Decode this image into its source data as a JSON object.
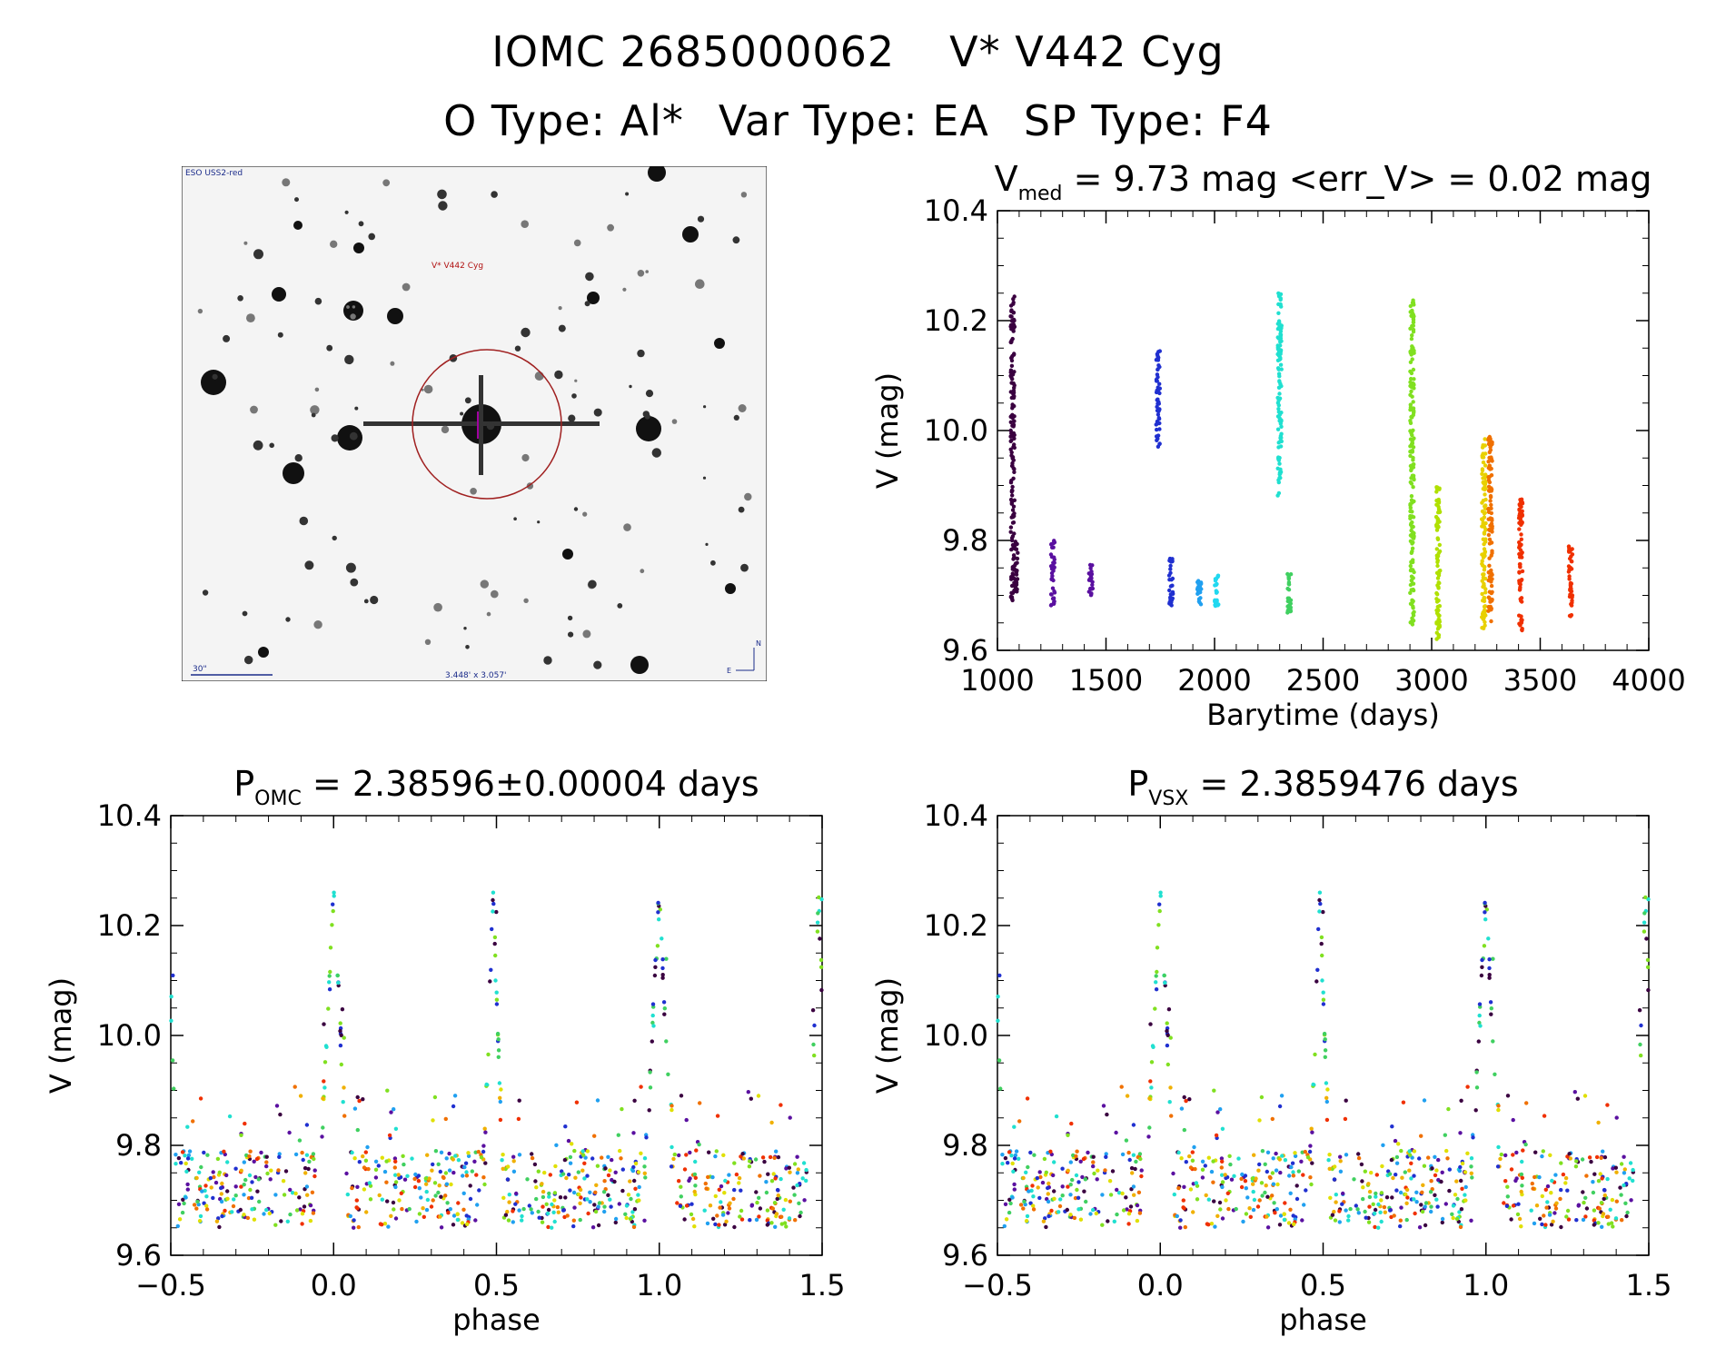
{
  "header": {
    "object_id": "IOMC 2685000062",
    "star_name": "V* V442 Cyg",
    "o_type": "O Type: Al*",
    "var_type": "Var Type: EA",
    "sp_type": "SP Type: F4"
  },
  "finder": {
    "survey_label": "ESO USS2-red",
    "target_label": "V* V442 Cyg",
    "scale_label": "30\"",
    "fov_label": "3.448' x 3.057'",
    "north_label": "N",
    "east_label": "E"
  },
  "colors": {
    "season_palette": [
      "#3a0040",
      "#5a10a0",
      "#2030d0",
      "#20a0f0",
      "#20e0d0",
      "#40d060",
      "#80e020",
      "#e0e000",
      "#f0b000",
      "#f07000",
      "#f03000"
    ]
  },
  "chart_data": [
    {
      "id": "lightcurve",
      "type": "scatter",
      "title_main": "V",
      "title_sub": "med",
      "title_rest": " = 9.73 mag <err_V> = 0.02 mag",
      "xlabel": "Barytime (days)",
      "ylabel": "V (mag)",
      "xlim": [
        1000,
        4000
      ],
      "ylim": [
        10.4,
        9.6
      ],
      "y_inverted": true,
      "xticks": [
        "1000",
        "1500",
        "2000",
        "2500",
        "3000",
        "3500",
        "4000"
      ],
      "yticks": [
        "9.6",
        "9.8",
        "10.0",
        "10.2",
        "10.4"
      ],
      "groups": [
        {
          "x": 1070,
          "ymin": 9.69,
          "ymax": 10.25,
          "color": "#3a0040"
        },
        {
          "x": 1085,
          "ymin": 9.7,
          "ymax": 9.8,
          "color": "#3a0040"
        },
        {
          "x": 1255,
          "ymin": 9.68,
          "ymax": 9.8,
          "color": "#5a10a0"
        },
        {
          "x": 1430,
          "ymin": 9.7,
          "ymax": 9.76,
          "color": "#5a10a0"
        },
        {
          "x": 1740,
          "ymin": 9.97,
          "ymax": 10.15,
          "color": "#2030d0"
        },
        {
          "x": 1800,
          "ymin": 9.68,
          "ymax": 9.77,
          "color": "#2030d0"
        },
        {
          "x": 1930,
          "ymin": 9.68,
          "ymax": 9.73,
          "color": "#20a0f0"
        },
        {
          "x": 2010,
          "ymin": 9.68,
          "ymax": 9.74,
          "color": "#20d8f0"
        },
        {
          "x": 2300,
          "ymin": 9.88,
          "ymax": 10.25,
          "color": "#20e0d0"
        },
        {
          "x": 2345,
          "ymin": 9.66,
          "ymax": 9.74,
          "color": "#40d060"
        },
        {
          "x": 2910,
          "ymin": 9.64,
          "ymax": 10.25,
          "color": "#80e020"
        },
        {
          "x": 3030,
          "ymin": 9.62,
          "ymax": 9.9,
          "color": "#b0e000"
        },
        {
          "x": 3240,
          "ymin": 9.64,
          "ymax": 9.99,
          "color": "#e8d000"
        },
        {
          "x": 3270,
          "ymin": 9.65,
          "ymax": 9.99,
          "color": "#f07000"
        },
        {
          "x": 3410,
          "ymin": 9.63,
          "ymax": 9.88,
          "color": "#f03000"
        },
        {
          "x": 3640,
          "ymin": 9.66,
          "ymax": 9.79,
          "color": "#f03000"
        }
      ]
    },
    {
      "id": "phase_omc",
      "type": "scatter",
      "title_main": "P",
      "title_sub": "OMC",
      "title_rest": " = 2.38596±0.00004 days",
      "xlabel": "phase",
      "ylabel": "V (mag)",
      "xlim": [
        -0.5,
        1.5
      ],
      "ylim": [
        10.4,
        9.6
      ],
      "y_inverted": true,
      "xticks": [
        "−0.5",
        "0.0",
        "0.5",
        "1.0",
        "1.5"
      ],
      "yticks": [
        "9.6",
        "9.8",
        "10.0",
        "10.2",
        "10.4"
      ],
      "model": {
        "max_mag": 9.72,
        "primary_depth": 10.25,
        "primary_phase": 0.0,
        "primary_width": 0.045,
        "secondary_depth": 10.25,
        "secondary_phase": 0.49,
        "secondary_width": 0.03
      }
    },
    {
      "id": "phase_vsx",
      "type": "scatter",
      "title_main": "P",
      "title_sub": "VSX",
      "title_rest": " = 2.3859476 days",
      "xlabel": "phase",
      "ylabel": "V (mag)",
      "xlim": [
        -0.5,
        1.5
      ],
      "ylim": [
        10.4,
        9.6
      ],
      "y_inverted": true,
      "xticks": [
        "−0.5",
        "0.0",
        "0.5",
        "1.0",
        "1.5"
      ],
      "yticks": [
        "9.6",
        "9.8",
        "10.0",
        "10.2",
        "10.4"
      ],
      "model": {
        "max_mag": 9.72,
        "primary_depth": 10.25,
        "primary_phase": 0.0,
        "primary_width": 0.045,
        "secondary_depth": 10.25,
        "secondary_phase": 0.49,
        "secondary_width": 0.03
      }
    }
  ]
}
